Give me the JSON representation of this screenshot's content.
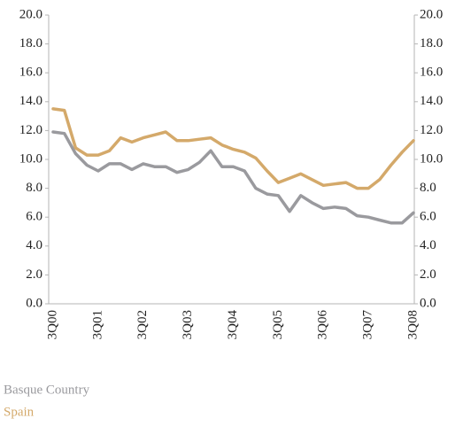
{
  "chart_data": {
    "type": "line",
    "x": [
      "3Q00",
      null,
      null,
      null,
      "3Q01",
      null,
      null,
      null,
      "3Q02",
      null,
      null,
      null,
      "3Q03",
      null,
      null,
      null,
      "3Q04",
      null,
      null,
      null,
      "3Q05",
      null,
      null,
      null,
      "3Q06",
      null,
      null,
      null,
      "3Q07",
      null,
      null,
      null,
      "3Q08"
    ],
    "series": [
      {
        "name": "Basque Country",
        "color": "#9a9a9e",
        "values": [
          11.9,
          11.8,
          10.4,
          9.6,
          9.2,
          9.7,
          9.7,
          9.3,
          9.7,
          9.5,
          9.5,
          9.1,
          9.3,
          9.8,
          10.6,
          9.5,
          9.5,
          9.2,
          8.0,
          7.6,
          7.5,
          6.4,
          7.5,
          7.0,
          6.6,
          6.7,
          6.6,
          6.1,
          6.0,
          5.8,
          5.6,
          5.6,
          6.3
        ]
      },
      {
        "name": "Spain",
        "color": "#d4a96a",
        "values": [
          13.5,
          13.4,
          10.8,
          10.3,
          10.3,
          10.6,
          11.5,
          11.2,
          11.5,
          11.7,
          11.9,
          11.3,
          11.3,
          11.4,
          11.5,
          11.0,
          10.7,
          10.5,
          10.1,
          9.2,
          8.4,
          8.7,
          9.0,
          8.6,
          8.2,
          8.3,
          8.4,
          8.0,
          8.0,
          8.6,
          9.6,
          10.5,
          11.3
        ]
      }
    ],
    "ylim": [
      0,
      20
    ],
    "yticks": [
      {
        "value": 0,
        "label": "0.0"
      },
      {
        "value": 2,
        "label": "2.0"
      },
      {
        "value": 4,
        "label": "4.0"
      },
      {
        "value": 6,
        "label": "6.0"
      },
      {
        "value": 8,
        "label": "8.0"
      },
      {
        "value": 10,
        "label": "10.0"
      },
      {
        "value": 12,
        "label": "12.0"
      },
      {
        "value": 14,
        "label": "14.0"
      },
      {
        "value": 16,
        "label": "16.0"
      },
      {
        "value": 18,
        "label": "18.0"
      },
      {
        "value": 20,
        "label": "20.0"
      }
    ]
  }
}
